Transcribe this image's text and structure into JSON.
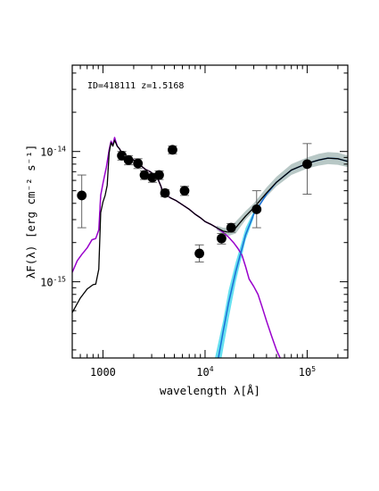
{
  "chart_data": {
    "type": "scatter",
    "annotation": "ID=418111 z=1.5168",
    "xlabel": "wavelength λ[Å]",
    "ylabel": "λF(λ) [erg cm⁻² s⁻¹]",
    "x_scale": "log",
    "y_scale": "log",
    "xlim": [
      500,
      250000
    ],
    "ylim": [
      2.6e-16,
      4.6e-14
    ],
    "x_ticks": [
      {
        "value": 1000,
        "label": "1000"
      },
      {
        "value": 10000,
        "base": "10",
        "exp": "4"
      },
      {
        "value": 100000,
        "base": "10",
        "exp": "5"
      }
    ],
    "y_ticks": [
      {
        "value": 1e-14,
        "base": "10",
        "exp": "-14"
      },
      {
        "value": 1e-15,
        "base": "10",
        "exp": "-15"
      }
    ],
    "colors": {
      "total": "#000000",
      "galaxy": "#9900cc",
      "dust": "#1a6fd6",
      "dust_band": "#66e0f0",
      "total_band": "#b8c8c6",
      "points": "#000000"
    },
    "series": [
      {
        "kind": "points",
        "values": [
          {
            "x": 620,
            "y": 4.6e-15,
            "ylo": 2.6e-15,
            "yhi": 6.6e-15
          },
          {
            "x": 1530,
            "y": 9.3e-15,
            "ylo": 8.6e-15,
            "yhi": 1e-14
          },
          {
            "x": 1780,
            "y": 8.6e-15,
            "ylo": 7.9e-15,
            "yhi": 9.3e-15
          },
          {
            "x": 2200,
            "y": 8.1e-15,
            "ylo": 7.4e-15,
            "yhi": 8.8e-15
          },
          {
            "x": 2550,
            "y": 6.6e-15,
            "ylo": 6.1e-15,
            "yhi": 7.1e-15
          },
          {
            "x": 3050,
            "y": 6.3e-15,
            "ylo": 5.8e-15,
            "yhi": 6.8e-15
          },
          {
            "x": 3550,
            "y": 6.6e-15,
            "ylo": 6.1e-15,
            "yhi": 7.1e-15
          },
          {
            "x": 4050,
            "y": 4.8e-15,
            "ylo": 4.5e-15,
            "yhi": 5.1e-15
          },
          {
            "x": 4800,
            "y": 1.03e-14,
            "ylo": 9.6e-15,
            "yhi": 1.1e-14
          },
          {
            "x": 6300,
            "y": 5e-15,
            "ylo": 4.6e-15,
            "yhi": 5.4e-15
          },
          {
            "x": 8800,
            "y": 1.65e-15,
            "ylo": 1.42e-15,
            "yhi": 1.92e-15
          },
          {
            "x": 14500,
            "y": 2.15e-15,
            "ylo": 1.95e-15,
            "yhi": 2.35e-15
          },
          {
            "x": 18000,
            "y": 2.6e-15,
            "ylo": 2.4e-15,
            "yhi": 2.8e-15
          },
          {
            "x": 32000,
            "y": 3.6e-15,
            "ylo": 2.6e-15,
            "yhi": 5e-15
          },
          {
            "x": 100000,
            "y": 8e-15,
            "ylo": 4.7e-15,
            "yhi": 1.15e-14
          }
        ]
      },
      {
        "kind": "line",
        "component": "galaxy",
        "values": [
          [
            500,
            1.18e-15
          ],
          [
            560,
            1.45e-15
          ],
          [
            620,
            1.62e-15
          ],
          [
            700,
            1.82e-15
          ],
          [
            780,
            2.1e-15
          ],
          [
            850,
            2.15e-15
          ],
          [
            910,
            2.5e-15
          ],
          [
            950,
            4.6e-15
          ],
          [
            1000,
            5.7e-15
          ],
          [
            1080,
            7.6e-15
          ],
          [
            1150,
            1.03e-14
          ],
          [
            1200,
            1.2e-14
          ],
          [
            1250,
            1.12e-14
          ],
          [
            1300,
            1.28e-14
          ],
          [
            1380,
            1.1e-14
          ],
          [
            1450,
            1.05e-14
          ],
          [
            1550,
            9.6e-15
          ],
          [
            1700,
            9.2e-15
          ],
          [
            1900,
            8.8e-15
          ],
          [
            2100,
            8.4e-15
          ],
          [
            2300,
            7.9e-15
          ],
          [
            2600,
            7.3e-15
          ],
          [
            2900,
            7e-15
          ],
          [
            3200,
            6.6e-15
          ],
          [
            3500,
            6e-15
          ],
          [
            3700,
            5.4e-15
          ],
          [
            3900,
            4.7e-15
          ],
          [
            4200,
            4.6e-15
          ],
          [
            4600,
            4.4e-15
          ],
          [
            5200,
            4.2e-15
          ],
          [
            6000,
            3.9e-15
          ],
          [
            7000,
            3.6e-15
          ],
          [
            8000,
            3.3e-15
          ],
          [
            9000,
            3.1e-15
          ],
          [
            10000,
            2.9e-15
          ],
          [
            11500,
            2.75e-15
          ],
          [
            13000,
            2.6e-15
          ],
          [
            15000,
            2.4e-15
          ],
          [
            17000,
            2.2e-15
          ],
          [
            19000,
            2e-15
          ],
          [
            21000,
            1.8e-15
          ],
          [
            23000,
            1.6e-15
          ],
          [
            25000,
            1.3e-15
          ],
          [
            27000,
            1.05e-15
          ],
          [
            30000,
            9.2e-16
          ],
          [
            33000,
            8e-16
          ],
          [
            36000,
            6.5e-16
          ],
          [
            40000,
            5e-16
          ],
          [
            45000,
            3.8e-16
          ],
          [
            50000,
            3e-16
          ],
          [
            55000,
            2.55e-16
          ]
        ]
      },
      {
        "kind": "line",
        "component": "dust",
        "values": [
          [
            13500,
            2.6e-16
          ],
          [
            15000,
            4.1e-16
          ],
          [
            17000,
            6.9e-16
          ],
          [
            20000,
            1.2e-15
          ],
          [
            25000,
            2.3e-15
          ],
          [
            30000,
            3.3e-15
          ],
          [
            40000,
            4.7e-15
          ],
          [
            50000,
            5.8e-15
          ],
          [
            70000,
            7.2e-15
          ],
          [
            100000,
            8.1e-15
          ],
          [
            130000,
            8.6e-15
          ],
          [
            160000,
            8.9e-15
          ],
          [
            200000,
            8.8e-15
          ],
          [
            250000,
            8.4e-15
          ]
        ]
      },
      {
        "kind": "line",
        "component": "total",
        "values": [
          [
            500,
            5.8e-16
          ],
          [
            600,
            7.5e-16
          ],
          [
            700,
            8.8e-16
          ],
          [
            800,
            9.5e-16
          ],
          [
            850,
            9.6e-16
          ],
          [
            910,
            1.25e-15
          ],
          [
            950,
            3.4e-15
          ],
          [
            1000,
            4.1e-15
          ],
          [
            1050,
            4.6e-15
          ],
          [
            1100,
            5.5e-15
          ],
          [
            1150,
            9.8e-15
          ],
          [
            1200,
            1.17e-14
          ],
          [
            1250,
            1.1e-14
          ],
          [
            1300,
            1.22e-14
          ],
          [
            1380,
            1.1e-14
          ],
          [
            1450,
            1.05e-14
          ],
          [
            1550,
            9.6e-15
          ],
          [
            1700,
            9.2e-15
          ],
          [
            1900,
            8.8e-15
          ],
          [
            2100,
            8.4e-15
          ],
          [
            2300,
            7.9e-15
          ],
          [
            2600,
            7.3e-15
          ],
          [
            2900,
            7e-15
          ],
          [
            3200,
            6.6e-15
          ],
          [
            3500,
            6e-15
          ],
          [
            3700,
            5.4e-15
          ],
          [
            3900,
            4.7e-15
          ],
          [
            4200,
            4.6e-15
          ],
          [
            4600,
            4.4e-15
          ],
          [
            5200,
            4.2e-15
          ],
          [
            6000,
            3.9e-15
          ],
          [
            7000,
            3.6e-15
          ],
          [
            8000,
            3.3e-15
          ],
          [
            9000,
            3.1e-15
          ],
          [
            10000,
            2.9e-15
          ],
          [
            11500,
            2.75e-15
          ],
          [
            13000,
            2.6e-15
          ],
          [
            15000,
            2.45e-15
          ],
          [
            17000,
            2.4e-15
          ],
          [
            20000,
            2.6e-15
          ],
          [
            25000,
            3.2e-15
          ],
          [
            30000,
            3.7e-15
          ],
          [
            40000,
            4.8e-15
          ],
          [
            50000,
            5.8e-15
          ],
          [
            70000,
            7.2e-15
          ],
          [
            100000,
            8.1e-15
          ],
          [
            130000,
            8.6e-15
          ],
          [
            160000,
            8.9e-15
          ],
          [
            200000,
            8.8e-15
          ],
          [
            250000,
            8.4e-15
          ]
        ]
      },
      {
        "kind": "band",
        "component": "dust_band",
        "lower": [
          [
            14500,
            2.6e-16
          ],
          [
            17000,
            5.2e-16
          ],
          [
            20000,
            1e-15
          ],
          [
            25000,
            2.1e-15
          ],
          [
            30000,
            3.1e-15
          ]
        ],
        "upper": [
          [
            12500,
            2.6e-16
          ],
          [
            15000,
            5e-16
          ],
          [
            17000,
            8.6e-16
          ],
          [
            20000,
            1.42e-15
          ],
          [
            25000,
            2.6e-15
          ],
          [
            30000,
            3.5e-15
          ]
        ]
      },
      {
        "kind": "band",
        "component": "total_band",
        "lower": [
          [
            13000,
            2.5e-15
          ],
          [
            15000,
            2.3e-15
          ],
          [
            17000,
            2.25e-15
          ],
          [
            20000,
            2.35e-15
          ],
          [
            25000,
            3e-15
          ],
          [
            30000,
            3.5e-15
          ],
          [
            40000,
            4.5e-15
          ],
          [
            50000,
            5.4e-15
          ],
          [
            70000,
            6.6e-15
          ],
          [
            100000,
            7.4e-15
          ],
          [
            130000,
            7.8e-15
          ],
          [
            160000,
            8e-15
          ],
          [
            200000,
            7.9e-15
          ],
          [
            250000,
            7.6e-15
          ]
        ],
        "upper": [
          [
            13000,
            2.7e-15
          ],
          [
            15000,
            2.6e-15
          ],
          [
            17000,
            2.6e-15
          ],
          [
            20000,
            2.9e-15
          ],
          [
            25000,
            3.5e-15
          ],
          [
            30000,
            4e-15
          ],
          [
            40000,
            5.3e-15
          ],
          [
            50000,
            6.4e-15
          ],
          [
            70000,
            8e-15
          ],
          [
            100000,
            9e-15
          ],
          [
            130000,
            9.6e-15
          ],
          [
            160000,
            9.9e-15
          ],
          [
            200000,
            9.8e-15
          ],
          [
            250000,
            9.3e-15
          ]
        ]
      }
    ]
  }
}
